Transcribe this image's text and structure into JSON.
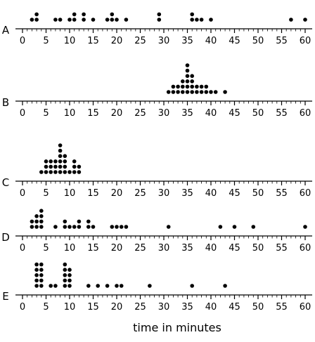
{
  "chart_data": {
    "type": "scatter",
    "subtype": "dot-plot",
    "title": "",
    "xlabel": "time in minutes",
    "ylabel": "",
    "xlim": [
      0,
      60
    ],
    "xticks": [
      0,
      5,
      10,
      15,
      20,
      25,
      30,
      35,
      40,
      45,
      50,
      55,
      60
    ],
    "grid": false,
    "legend": "none",
    "dot_color": "#000000",
    "plots": [
      {
        "label": "A",
        "points": [
          {
            "x": 2,
            "count": 1
          },
          {
            "x": 3,
            "count": 2
          },
          {
            "x": 7,
            "count": 1
          },
          {
            "x": 8,
            "count": 1
          },
          {
            "x": 10,
            "count": 1
          },
          {
            "x": 11,
            "count": 2
          },
          {
            "x": 13,
            "count": 2
          },
          {
            "x": 15,
            "count": 1
          },
          {
            "x": 18,
            "count": 1
          },
          {
            "x": 19,
            "count": 2
          },
          {
            "x": 20,
            "count": 1
          },
          {
            "x": 22,
            "count": 1
          },
          {
            "x": 29,
            "count": 2
          },
          {
            "x": 36,
            "count": 2
          },
          {
            "x": 37,
            "count": 1
          },
          {
            "x": 38,
            "count": 1
          },
          {
            "x": 40,
            "count": 1
          },
          {
            "x": 57,
            "count": 1
          },
          {
            "x": 60,
            "count": 1
          }
        ]
      },
      {
        "label": "B",
        "points": [
          {
            "x": 31,
            "count": 1
          },
          {
            "x": 32,
            "count": 2
          },
          {
            "x": 33,
            "count": 2
          },
          {
            "x": 34,
            "count": 3
          },
          {
            "x": 35,
            "count": 6
          },
          {
            "x": 36,
            "count": 4
          },
          {
            "x": 37,
            "count": 2
          },
          {
            "x": 38,
            "count": 2
          },
          {
            "x": 39,
            "count": 2
          },
          {
            "x": 40,
            "count": 1
          },
          {
            "x": 41,
            "count": 1
          },
          {
            "x": 43,
            "count": 1
          }
        ]
      },
      {
        "label": "C",
        "points": [
          {
            "x": 4,
            "count": 1
          },
          {
            "x": 5,
            "count": 3
          },
          {
            "x": 6,
            "count": 3
          },
          {
            "x": 7,
            "count": 3
          },
          {
            "x": 8,
            "count": 6
          },
          {
            "x": 9,
            "count": 4
          },
          {
            "x": 10,
            "count": 1
          },
          {
            "x": 11,
            "count": 3
          },
          {
            "x": 12,
            "count": 2
          }
        ]
      },
      {
        "label": "D",
        "points": [
          {
            "x": 2,
            "count": 2
          },
          {
            "x": 3,
            "count": 3
          },
          {
            "x": 4,
            "count": 4
          },
          {
            "x": 7,
            "count": 1
          },
          {
            "x": 9,
            "count": 2
          },
          {
            "x": 10,
            "count": 1
          },
          {
            "x": 11,
            "count": 1
          },
          {
            "x": 12,
            "count": 2
          },
          {
            "x": 14,
            "count": 2
          },
          {
            "x": 15,
            "count": 1
          },
          {
            "x": 19,
            "count": 1
          },
          {
            "x": 20,
            "count": 1
          },
          {
            "x": 21,
            "count": 1
          },
          {
            "x": 22,
            "count": 1
          },
          {
            "x": 31,
            "count": 1
          },
          {
            "x": 42,
            "count": 1
          },
          {
            "x": 45,
            "count": 1
          },
          {
            "x": 49,
            "count": 1
          },
          {
            "x": 60,
            "count": 1
          }
        ]
      },
      {
        "label": "E",
        "points": [
          {
            "x": 3,
            "count": 5
          },
          {
            "x": 4,
            "count": 5
          },
          {
            "x": 6,
            "count": 1
          },
          {
            "x": 7,
            "count": 1
          },
          {
            "x": 9,
            "count": 5
          },
          {
            "x": 10,
            "count": 4
          },
          {
            "x": 14,
            "count": 1
          },
          {
            "x": 16,
            "count": 1
          },
          {
            "x": 18,
            "count": 1
          },
          {
            "x": 20,
            "count": 1
          },
          {
            "x": 21,
            "count": 1
          },
          {
            "x": 27,
            "count": 1
          },
          {
            "x": 36,
            "count": 1
          },
          {
            "x": 43,
            "count": 1
          }
        ]
      }
    ]
  }
}
